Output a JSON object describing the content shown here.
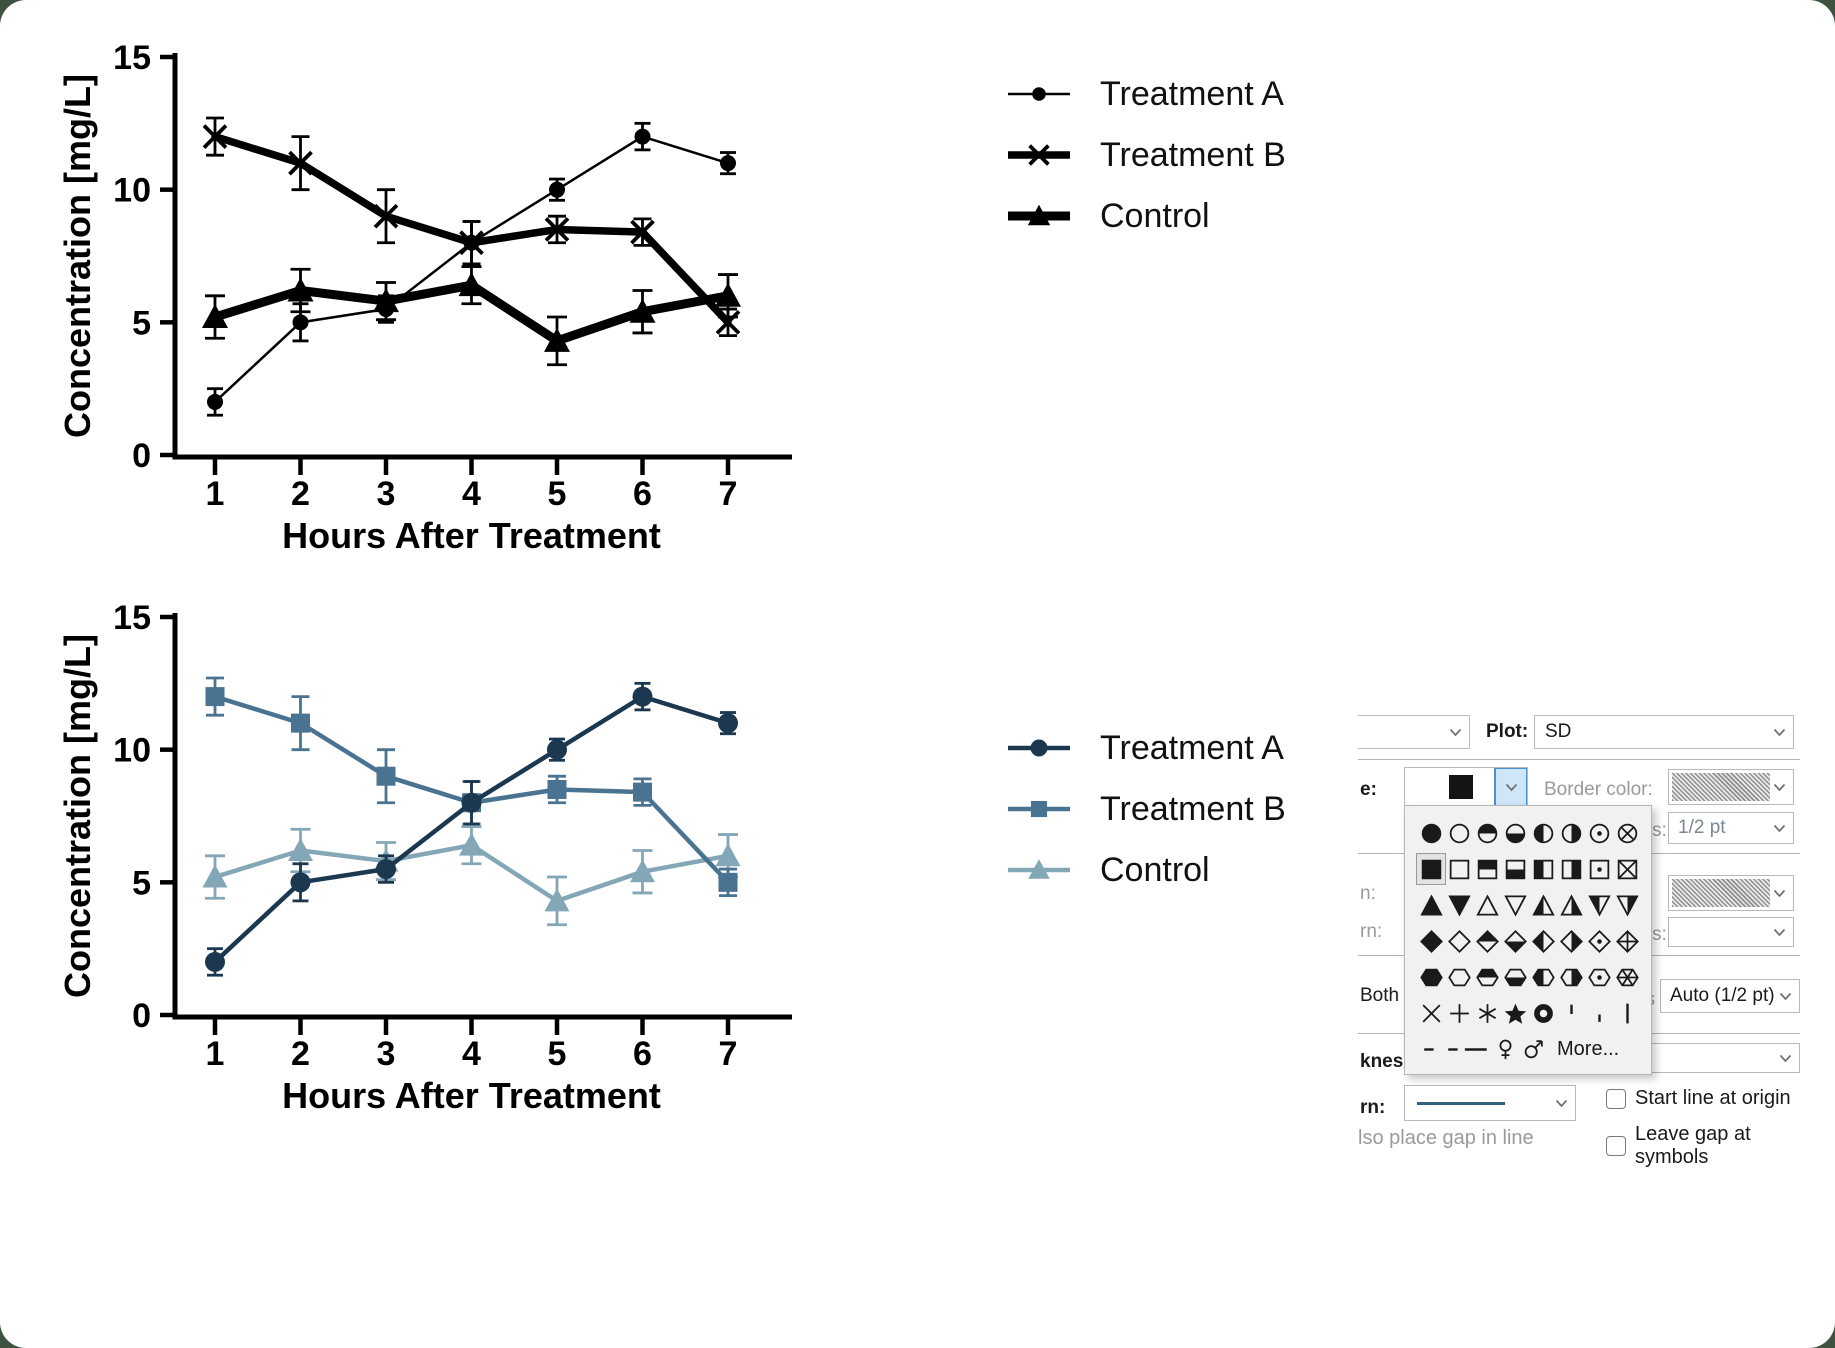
{
  "frame": {
    "outer_color": "#3e5240",
    "panel_color": "#ffffff"
  },
  "colors": {
    "black": "#000000",
    "navy": "#1b3850",
    "steel": "#4a7291",
    "light_blue": "#84a7b8",
    "pattern_line": "#33607d",
    "highlight_blue_bg": "#cfe5f8",
    "highlight_blue_border": "#4a90d2"
  },
  "chart_data": [
    {
      "type": "line",
      "variant": "monochrome",
      "title": "",
      "xlabel": "Hours After Treatment",
      "ylabel": "Concentration [mg/L]",
      "categories": [
        1,
        2,
        3,
        4,
        5,
        6,
        7
      ],
      "yticks": [
        0,
        5,
        10,
        15
      ],
      "ylim": [
        0,
        15
      ],
      "grid": false,
      "legend_position": "right",
      "error_bars": "SD",
      "series": [
        {
          "name": "Treatment A",
          "marker": "circle",
          "color": "#000000",
          "line_width": 2.5,
          "marker_size": 16,
          "cap": 16,
          "values": [
            2,
            5,
            5.5,
            8,
            10,
            12,
            11
          ],
          "errors": [
            0.5,
            0.7,
            0.5,
            0.8,
            0.4,
            0.5,
            0.4
          ]
        },
        {
          "name": "Treatment B",
          "marker": "x",
          "color": "#000000",
          "line_width": 7.5,
          "marker_size": 22,
          "cap": 18,
          "values": [
            12,
            11,
            9,
            8,
            8.5,
            8.4,
            5
          ],
          "errors": [
            0.7,
            1.0,
            1.0,
            0.8,
            0.5,
            0.5,
            0.5
          ]
        },
        {
          "name": "Control",
          "marker": "triangle",
          "color": "#000000",
          "line_width": 9,
          "marker_size": 24,
          "cap": 20,
          "values": [
            5.2,
            6.2,
            5.8,
            6.4,
            4.3,
            5.4,
            6
          ],
          "errors": [
            0.8,
            0.8,
            0.7,
            0.7,
            0.9,
            0.8,
            0.8
          ]
        }
      ]
    },
    {
      "type": "line",
      "variant": "colored",
      "title": "",
      "xlabel": "Hours After Treatment",
      "ylabel": "Concentration [mg/L]",
      "categories": [
        1,
        2,
        3,
        4,
        5,
        6,
        7
      ],
      "yticks": [
        0,
        5,
        10,
        15
      ],
      "ylim": [
        0,
        15
      ],
      "grid": false,
      "legend_position": "right",
      "error_bars": "SD",
      "series": [
        {
          "name": "Treatment A",
          "marker": "circle",
          "color": "#1b3850",
          "line_width": 4.5,
          "marker_size": 20,
          "cap": 16,
          "values": [
            2,
            5,
            5.5,
            8,
            10,
            12,
            11
          ],
          "errors": [
            0.5,
            0.7,
            0.5,
            0.8,
            0.4,
            0.5,
            0.4
          ]
        },
        {
          "name": "Treatment B",
          "marker": "square",
          "color": "#4a7291",
          "line_width": 4.5,
          "marker_size": 19,
          "cap": 18,
          "values": [
            12,
            11,
            9,
            8,
            8.5,
            8.4,
            5
          ],
          "errors": [
            0.7,
            1.0,
            1.0,
            0.8,
            0.5,
            0.5,
            0.5
          ]
        },
        {
          "name": "Control",
          "marker": "triangle",
          "color": "#84a7b8",
          "line_width": 4.5,
          "marker_size": 23,
          "cap": 20,
          "values": [
            5.2,
            6.2,
            5.8,
            6.4,
            4.3,
            5.4,
            6
          ],
          "errors": [
            0.8,
            0.8,
            0.7,
            0.7,
            0.9,
            0.8,
            0.8
          ]
        }
      ]
    }
  ],
  "dialog": {
    "plot_label": "Plot:",
    "plot_value": "SD",
    "shape_label": "e:",
    "border_color_label": "Border color:",
    "size_label": "s:",
    "size_value": "1/2 pt",
    "label_n": "n:",
    "label_rn_gray": "rn:",
    "both_value": "Both",
    "thickness_short_label": "ss",
    "thickness_value": "Auto (1/2 pt)",
    "thickness_cut_label": "kness:",
    "pattern_label": "rn:",
    "also_gap_text": "lso place gap in line",
    "checkbox_origin": {
      "label": "Start line at origin",
      "checked": false
    },
    "checkbox_gap": {
      "label": "Leave gap at symbols",
      "checked": false
    },
    "more_label": "More...",
    "selected_symbol": "square-filled",
    "symbol_rows": [
      [
        "circle-filled",
        "circle-open",
        "circle-half-top",
        "circle-half-bottom",
        "circle-half-left",
        "circle-half-right",
        "circle-dot",
        "circle-x"
      ],
      [
        "square-filled",
        "square-open",
        "square-half-top",
        "square-half-bottom",
        "square-half-left",
        "square-half-right",
        "square-dot",
        "square-x"
      ],
      [
        "triangle-up-filled",
        "triangle-down-filled",
        "triangle-up-open",
        "triangle-down-open",
        "triangle-up-half-left",
        "triangle-up-half-right",
        "triangle-down-half-left",
        "triangle-down-half-right"
      ],
      [
        "diamond-filled",
        "diamond-open",
        "diamond-half-top",
        "diamond-half-bottom",
        "diamond-half-left",
        "diamond-half-right",
        "diamond-dot",
        "diamond-plus"
      ],
      [
        "hexagon-filled",
        "hexagon-open",
        "hexagon-half-top",
        "hexagon-half-bottom",
        "hexagon-half-left",
        "hexagon-half-right",
        "hexagon-dot",
        "hexagon-spokes"
      ],
      [
        "cross-x",
        "cross-plus",
        "asterisk",
        "star-filled",
        "ring-bold",
        "tick-high",
        "tick-low",
        "bar-vertical"
      ]
    ],
    "symbol_last_row": [
      "dash-short",
      "dash-pair",
      "female",
      "male"
    ]
  }
}
